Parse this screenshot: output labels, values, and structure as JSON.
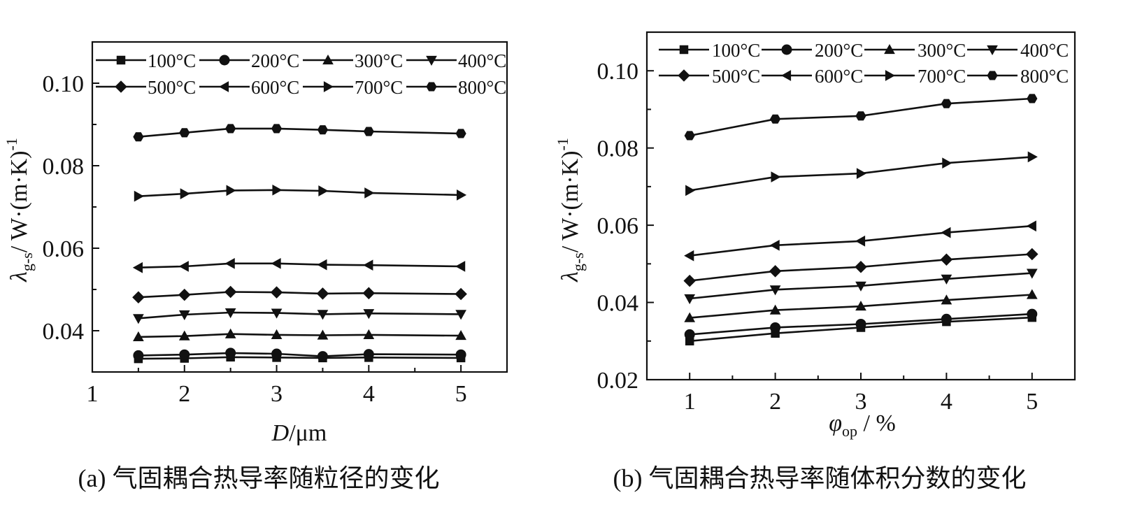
{
  "chart_data": [
    {
      "id": "a",
      "type": "line",
      "caption": "(a) 气固耦合热导率随粒径的变化",
      "ylabel_main": "λ",
      "ylabel_sub": "g-s",
      "ylabel_rest": "/ W·(m·K)",
      "ylabel_sup": "-1",
      "xlabel_main": "D",
      "xlabel_rest": "/μm",
      "xlim": [
        1,
        5.5
      ],
      "ylim": [
        0.03,
        0.11
      ],
      "xticks": [
        1,
        2,
        3,
        4,
        5
      ],
      "xtick_labels": [
        "1",
        "2",
        "3",
        "4",
        "5"
      ],
      "yticks": [
        0.04,
        0.06,
        0.08,
        0.1
      ],
      "ytick_labels": [
        "0.04",
        "0.06",
        "0.08",
        "0.10"
      ],
      "legend_position": "top",
      "x": [
        1.5,
        2,
        2.5,
        3,
        3.5,
        4,
        5
      ],
      "series": [
        {
          "name": "100°C",
          "marker": "square",
          "values": [
            0.0332,
            0.0333,
            0.0336,
            0.0335,
            0.0334,
            0.0335,
            0.0334
          ]
        },
        {
          "name": "200°C",
          "marker": "circle",
          "values": [
            0.034,
            0.0342,
            0.0346,
            0.0344,
            0.0338,
            0.0343,
            0.0342
          ]
        },
        {
          "name": "300°C",
          "marker": "triangle-up",
          "values": [
            0.0385,
            0.0387,
            0.0392,
            0.039,
            0.0389,
            0.039,
            0.0388
          ]
        },
        {
          "name": "400°C",
          "marker": "triangle-down",
          "values": [
            0.043,
            0.0439,
            0.0444,
            0.0443,
            0.044,
            0.0442,
            0.044
          ]
        },
        {
          "name": "500°C",
          "marker": "diamond",
          "values": [
            0.0481,
            0.0487,
            0.0494,
            0.0493,
            0.049,
            0.0491,
            0.0489
          ]
        },
        {
          "name": "600°C",
          "marker": "triangle-left",
          "values": [
            0.0553,
            0.0556,
            0.0563,
            0.0563,
            0.056,
            0.0559,
            0.0556
          ]
        },
        {
          "name": "700°C",
          "marker": "triangle-right",
          "values": [
            0.0726,
            0.0732,
            0.074,
            0.0741,
            0.0739,
            0.0734,
            0.0729
          ]
        },
        {
          "name": "800°C",
          "marker": "hexagon",
          "values": [
            0.087,
            0.088,
            0.089,
            0.089,
            0.0887,
            0.0883,
            0.0878
          ]
        }
      ]
    },
    {
      "id": "b",
      "type": "line",
      "caption": "(b) 气固耦合热导率随体积分数的变化",
      "ylabel_main": "λ",
      "ylabel_sub": "g-s",
      "ylabel_rest": "/ W·(m·K)",
      "ylabel_sup": "-1",
      "xlabel_main": "φ",
      "xlabel_sub": "op",
      "xlabel_rest": " / %",
      "xlim": [
        0.5,
        5.5
      ],
      "ylim": [
        0.02,
        0.11
      ],
      "xticks": [
        1,
        2,
        3,
        4,
        5
      ],
      "xtick_labels": [
        "1",
        "2",
        "3",
        "4",
        "5"
      ],
      "yticks": [
        0.02,
        0.04,
        0.06,
        0.08,
        0.1
      ],
      "ytick_labels": [
        "0.02",
        "0.04",
        "0.06",
        "0.08",
        "0.10"
      ],
      "legend_position": "top",
      "x": [
        1,
        2,
        3,
        4,
        5
      ],
      "series": [
        {
          "name": "100°C",
          "marker": "square",
          "values": [
            0.03,
            0.032,
            0.0335,
            0.035,
            0.0361
          ]
        },
        {
          "name": "200°C",
          "marker": "circle",
          "values": [
            0.0317,
            0.0335,
            0.0344,
            0.0357,
            0.037
          ]
        },
        {
          "name": "300°C",
          "marker": "triangle-up",
          "values": [
            0.036,
            0.038,
            0.039,
            0.0406,
            0.042
          ]
        },
        {
          "name": "400°C",
          "marker": "triangle-down",
          "values": [
            0.041,
            0.0433,
            0.0443,
            0.0461,
            0.0476
          ]
        },
        {
          "name": "500°C",
          "marker": "diamond",
          "values": [
            0.0456,
            0.0481,
            0.0492,
            0.0511,
            0.0525
          ]
        },
        {
          "name": "600°C",
          "marker": "triangle-left",
          "values": [
            0.0521,
            0.0548,
            0.0559,
            0.0581,
            0.0598
          ]
        },
        {
          "name": "700°C",
          "marker": "triangle-right",
          "values": [
            0.069,
            0.0725,
            0.0734,
            0.0761,
            0.0777
          ]
        },
        {
          "name": "800°C",
          "marker": "hexagon",
          "values": [
            0.0832,
            0.0875,
            0.0883,
            0.0915,
            0.0928
          ]
        }
      ]
    }
  ]
}
